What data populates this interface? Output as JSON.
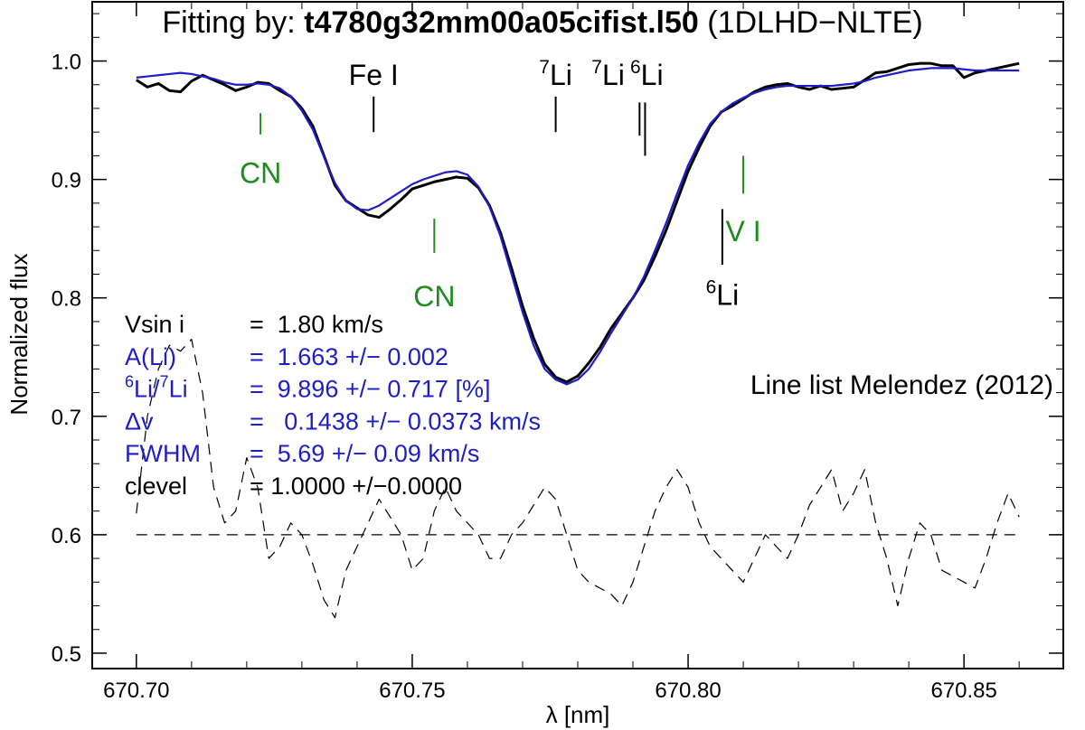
{
  "chart_data": {
    "type": "line",
    "title_prefix": "Fitting by: ",
    "title_model": "t4780g32mm00a05cifist.l50",
    "title_suffix": " (1DLHD−NLTE)",
    "xlabel": "λ [nm]",
    "ylabel": "Normalized flux",
    "xlim": [
      670.692,
      670.868
    ],
    "ylim": [
      0.487,
      1.05
    ],
    "xticks": [
      "670.70",
      "670.75",
      "670.80",
      "670.85"
    ],
    "yticks": [
      "0.5",
      "0.6",
      "0.7",
      "0.8",
      "0.9",
      "1.0"
    ],
    "colors": {
      "observed": "#000000",
      "fit": "#1e1ec8",
      "residual": "#000000",
      "green": "#1e8c1e",
      "blue_text": "#1e1ec8"
    },
    "x": [
      670.7,
      670.702,
      670.704,
      670.706,
      670.708,
      670.71,
      670.712,
      670.714,
      670.716,
      670.718,
      670.72,
      670.722,
      670.724,
      670.726,
      670.728,
      670.73,
      670.732,
      670.734,
      670.736,
      670.738,
      670.74,
      670.742,
      670.744,
      670.746,
      670.748,
      670.75,
      670.752,
      670.754,
      670.756,
      670.758,
      670.76,
      670.762,
      670.764,
      670.766,
      670.768,
      670.77,
      670.772,
      670.774,
      670.776,
      670.778,
      670.78,
      670.782,
      670.784,
      670.786,
      670.788,
      670.79,
      670.792,
      670.794,
      670.796,
      670.798,
      670.8,
      670.802,
      670.804,
      670.806,
      670.808,
      670.81,
      670.812,
      670.814,
      670.816,
      670.818,
      670.82,
      670.822,
      670.824,
      670.826,
      670.828,
      670.83,
      670.832,
      670.834,
      670.836,
      670.838,
      670.84,
      670.842,
      670.844,
      670.846,
      670.848,
      670.85,
      670.852,
      670.854,
      670.856,
      670.858,
      670.86
    ],
    "series": [
      {
        "key": "observed",
        "values": [
          0.984,
          0.978,
          0.981,
          0.975,
          0.974,
          0.983,
          0.988,
          0.984,
          0.98,
          0.975,
          0.978,
          0.982,
          0.981,
          0.975,
          0.97,
          0.96,
          0.945,
          0.92,
          0.895,
          0.882,
          0.876,
          0.87,
          0.868,
          0.875,
          0.883,
          0.892,
          0.895,
          0.898,
          0.9,
          0.902,
          0.901,
          0.893,
          0.878,
          0.855,
          0.825,
          0.793,
          0.766,
          0.744,
          0.733,
          0.729,
          0.734,
          0.745,
          0.758,
          0.774,
          0.787,
          0.8,
          0.815,
          0.835,
          0.857,
          0.882,
          0.907,
          0.927,
          0.945,
          0.957,
          0.962,
          0.968,
          0.974,
          0.978,
          0.98,
          0.981,
          0.978,
          0.976,
          0.979,
          0.976,
          0.977,
          0.978,
          0.984,
          0.99,
          0.991,
          0.994,
          0.997,
          0.998,
          0.998,
          0.996,
          0.996,
          0.986,
          0.99,
          0.992,
          0.994,
          0.996,
          0.998
        ]
      },
      {
        "key": "fit",
        "values": [
          0.986,
          0.987,
          0.988,
          0.989,
          0.99,
          0.989,
          0.987,
          0.985,
          0.982,
          0.98,
          0.98,
          0.981,
          0.98,
          0.977,
          0.97,
          0.958,
          0.942,
          0.919,
          0.897,
          0.882,
          0.875,
          0.874,
          0.878,
          0.884,
          0.89,
          0.896,
          0.9,
          0.903,
          0.906,
          0.907,
          0.904,
          0.894,
          0.877,
          0.852,
          0.82,
          0.788,
          0.76,
          0.74,
          0.731,
          0.727,
          0.731,
          0.74,
          0.754,
          0.77,
          0.785,
          0.8,
          0.818,
          0.84,
          0.863,
          0.888,
          0.912,
          0.931,
          0.947,
          0.957,
          0.964,
          0.969,
          0.973,
          0.976,
          0.978,
          0.979,
          0.979,
          0.979,
          0.979,
          0.979,
          0.98,
          0.981,
          0.983,
          0.986,
          0.988,
          0.99,
          0.992,
          0.993,
          0.994,
          0.994,
          0.994,
          0.993,
          0.992,
          0.992,
          0.992,
          0.992,
          0.992
        ]
      },
      {
        "key": "residual",
        "values": [
          0.618,
          0.7,
          0.74,
          0.76,
          0.755,
          0.765,
          0.72,
          0.64,
          0.61,
          0.62,
          0.665,
          0.64,
          0.58,
          0.59,
          0.61,
          0.6,
          0.575,
          0.545,
          0.53,
          0.57,
          0.59,
          0.61,
          0.63,
          0.615,
          0.6,
          0.57,
          0.58,
          0.62,
          0.64,
          0.62,
          0.61,
          0.6,
          0.58,
          0.58,
          0.6,
          0.61,
          0.625,
          0.64,
          0.63,
          0.6,
          0.57,
          0.56,
          0.555,
          0.55,
          0.54,
          0.56,
          0.59,
          0.62,
          0.64,
          0.655,
          0.64,
          0.61,
          0.59,
          0.58,
          0.57,
          0.56,
          0.58,
          0.6,
          0.59,
          0.58,
          0.6,
          0.625,
          0.64,
          0.655,
          0.62,
          0.635,
          0.655,
          0.61,
          0.58,
          0.54,
          0.58,
          0.61,
          0.6,
          0.57,
          0.565,
          0.56,
          0.555,
          0.58,
          0.61,
          0.635,
          0.615
        ]
      }
    ],
    "reference_line_y": 0.6,
    "line_markers": [
      {
        "name": "cn-marker-1",
        "label": "CN",
        "sup": "",
        "color": "green",
        "x": 670.7225,
        "y1": 0.956,
        "y2": 0.938,
        "lx": 670.7225,
        "ly": 0.897,
        "size": 32
      },
      {
        "name": "cn-marker-2",
        "label": "CN",
        "sup": "",
        "color": "green",
        "x": 670.754,
        "y1": 0.867,
        "y2": 0.838,
        "lx": 670.754,
        "ly": 0.793,
        "size": 32
      },
      {
        "name": "fe-marker",
        "label": "Fe I",
        "sup": "",
        "color": "black",
        "x": 670.743,
        "y1": 0.97,
        "y2": 0.94,
        "lx": 670.743,
        "ly": 0.98,
        "size": 32
      },
      {
        "name": "li7-marker-1",
        "label": "Li",
        "sup": "7",
        "color": "black",
        "x": 670.776,
        "y1": 0.97,
        "y2": 0.94,
        "lx": 670.776,
        "ly": 0.98,
        "size": 32
      },
      {
        "name": "li7-marker-2",
        "label": "Li",
        "sup": "7",
        "color": "black",
        "x": 670.7912,
        "y1": 0.965,
        "y2": 0.937,
        "lx": 670.7855,
        "ly": 0.98,
        "size": 32
      },
      {
        "name": "li6-marker-1",
        "label": "Li",
        "sup": "6",
        "color": "black",
        "x": 670.7922,
        "y1": 0.965,
        "y2": 0.92,
        "lx": 670.7925,
        "ly": 0.98,
        "size": 32
      },
      {
        "name": "v-marker",
        "label": "V I",
        "sup": "",
        "color": "green",
        "x": 670.81,
        "y1": 0.92,
        "y2": 0.888,
        "lx": 670.81,
        "ly": 0.848,
        "size": 32
      },
      {
        "name": "li6-marker-2",
        "label": "Li",
        "sup": "6",
        "color": "black",
        "x": 670.8062,
        "y1": 0.875,
        "y2": 0.828,
        "lx": 670.8062,
        "ly": 0.794,
        "size": 32
      }
    ],
    "annotation": "Line list Melendez (2012)",
    "params": [
      {
        "key": "vsini",
        "label": "Vsin i",
        "sup_a": "",
        "sup_b": "",
        "value": "=  1.80 km/s",
        "color": "black"
      },
      {
        "key": "ali",
        "label": "A(Li)",
        "sup_a": "",
        "sup_b": "",
        "value": "=  1.663 +/− 0.002",
        "color": "blue"
      },
      {
        "key": "ratio",
        "label": "Li/",
        "sup_a": "6",
        "sup_b": "7",
        "label2": "Li",
        "value": "=  9.896 +/− 0.717 [%]",
        "color": "blue"
      },
      {
        "key": "dv",
        "label": "Δv",
        "sup_a": "",
        "sup_b": "",
        "value": "=   0.1438 +/− 0.0373 km/s",
        "color": "blue"
      },
      {
        "key": "fwhm",
        "label": "FWHM",
        "sup_a": "",
        "sup_b": "",
        "value": "=  5.69 +/− 0.09 km/s",
        "color": "blue"
      },
      {
        "key": "clevel",
        "label": "clevel",
        "sup_a": "",
        "sup_b": "",
        "value": "= 1.0000 +/−0.0000",
        "color": "black"
      }
    ]
  }
}
